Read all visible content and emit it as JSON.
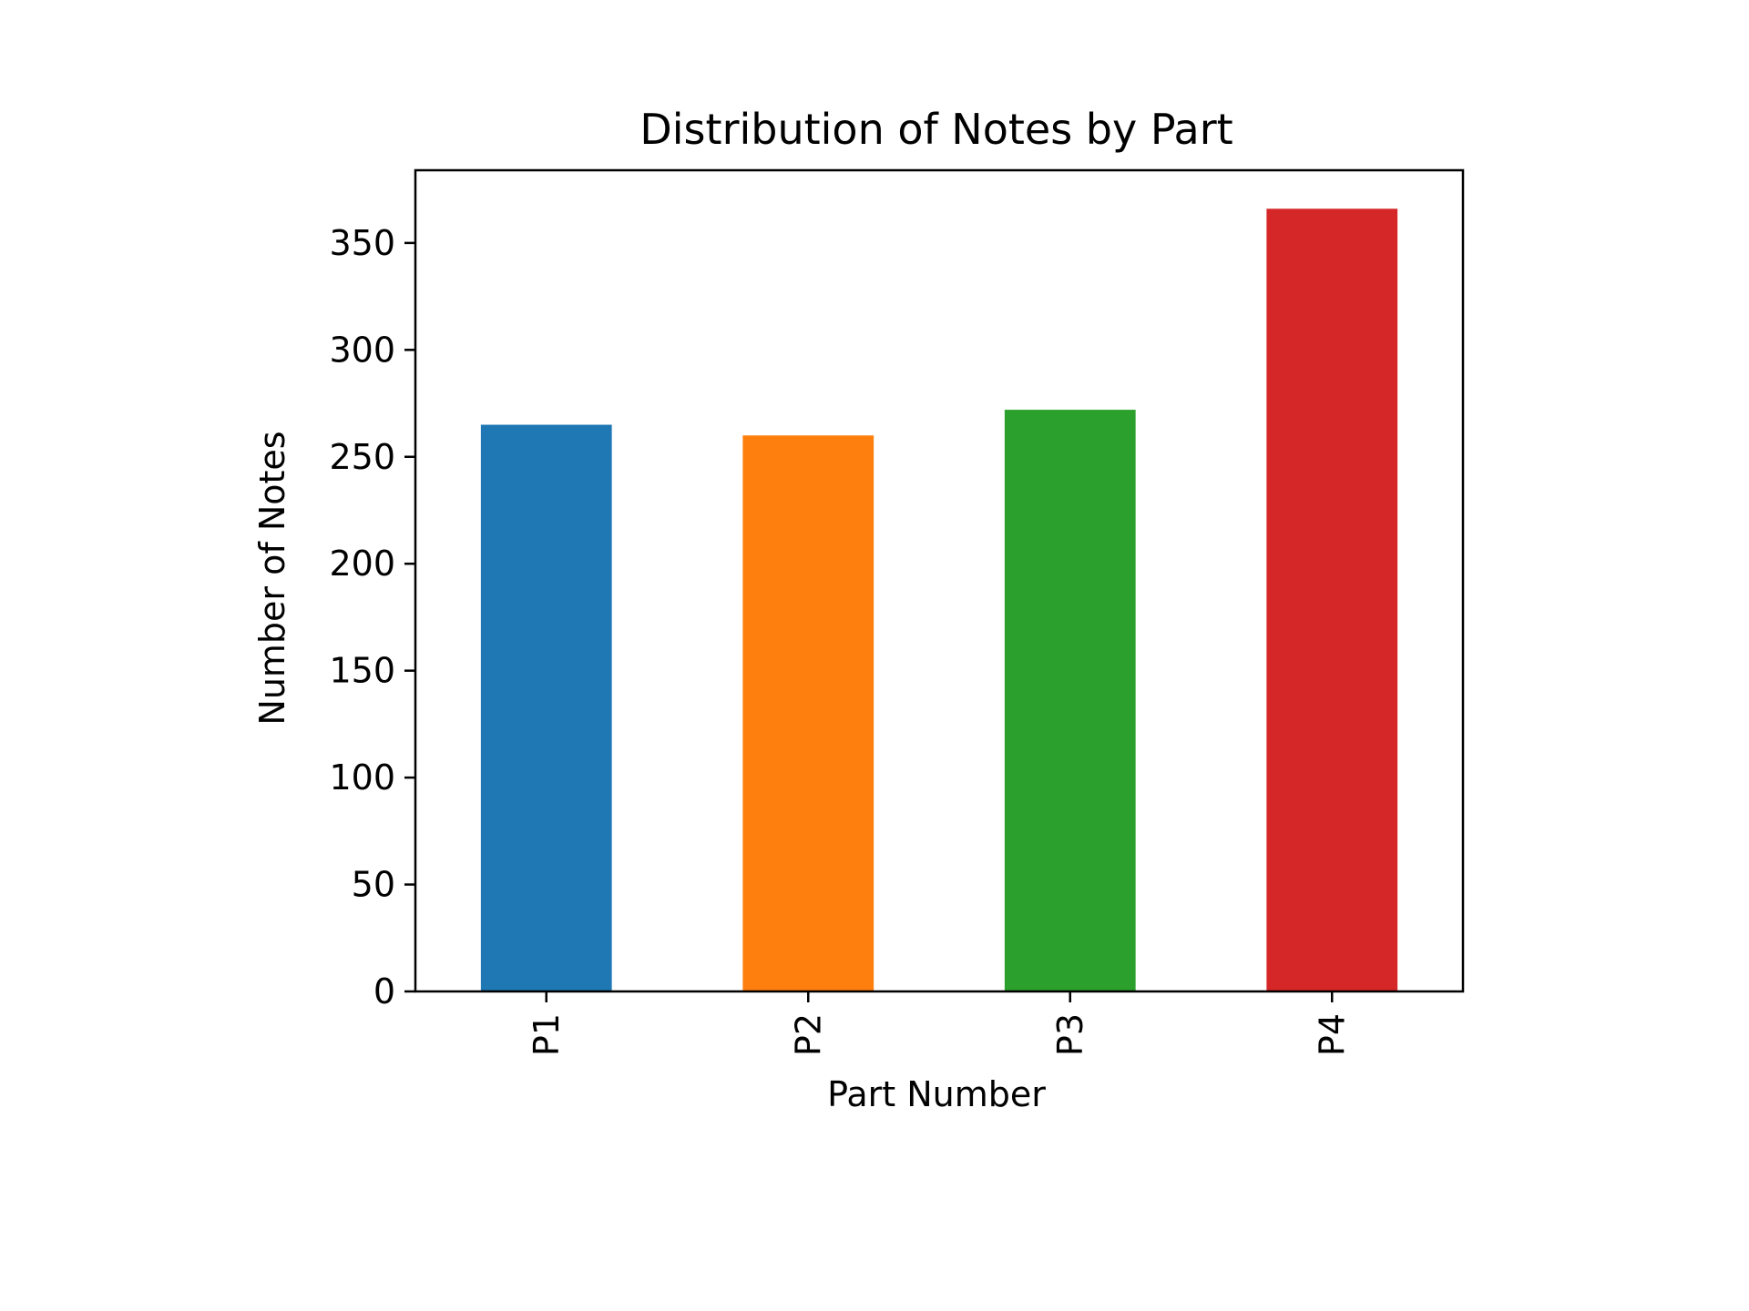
{
  "chart_data": {
    "type": "bar",
    "title": "Distribution of Notes by Part",
    "xlabel": "Part Number",
    "ylabel": "Number of Notes",
    "categories": [
      "P1",
      "P2",
      "P3",
      "P4"
    ],
    "values": [
      265,
      260,
      272,
      366
    ],
    "colors": [
      "#1f77b4",
      "#ff7f0e",
      "#2ca02c",
      "#d62728"
    ],
    "ylim": [
      0,
      384
    ],
    "yticks": [
      0,
      50,
      100,
      150,
      200,
      250,
      300,
      350
    ],
    "grid": false,
    "legend": "none",
    "x_tick_rotation": "vertical"
  }
}
